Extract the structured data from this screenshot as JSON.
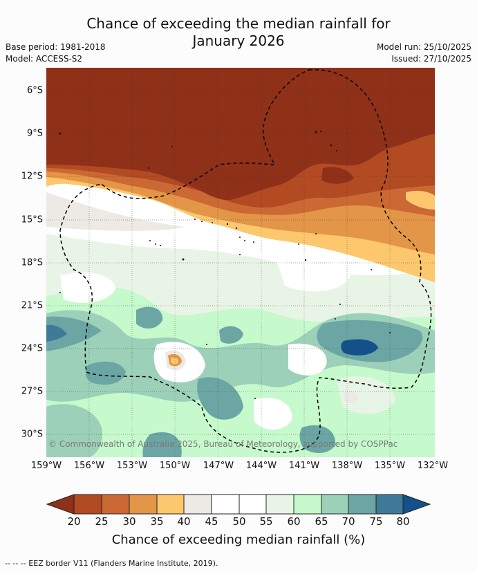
{
  "header": {
    "title_line1": "Chance of exceeding the median rainfall for",
    "title_line2": "January 2026",
    "base_period": "Base period: 1981-2018",
    "model": "Model: ACCESS-S2",
    "model_run": "Model run: 25/10/2025",
    "issued": "Issued: 27/10/2025"
  },
  "map": {
    "lat_labels": [
      "6°S",
      "9°S",
      "12°S",
      "15°S",
      "18°S",
      "21°S",
      "24°S",
      "27°S",
      "30°S"
    ],
    "lat_values": [
      -6,
      -9,
      -12,
      -15,
      -18,
      -21,
      -24,
      -27,
      -30
    ],
    "lon_labels": [
      "159°W",
      "156°W",
      "153°W",
      "150°W",
      "147°W",
      "144°W",
      "141°W",
      "138°W",
      "135°W",
      "132°W"
    ],
    "lon_values": [
      -159,
      -156,
      -153,
      -150,
      -147,
      -144,
      -141,
      -138,
      -135,
      -132
    ],
    "credit": "© Commonwealth of Australia 2025, Bureau of Meteorology, supported by COSPPac"
  },
  "colorbar": {
    "ticks": [
      "20",
      "25",
      "30",
      "35",
      "40",
      "45",
      "50",
      "55",
      "60",
      "65",
      "70",
      "75",
      "80"
    ],
    "colors": [
      "#8f3019",
      "#b24a22",
      "#cb6833",
      "#e39548",
      "#fdc86d",
      "#ede9e4",
      "#ffffff",
      "#ffffff",
      "#e8f5e6",
      "#c6f9cb",
      "#9cd0b9",
      "#6ba6a4",
      "#3f7a98",
      "#145089"
    ],
    "title": "Chance of exceeding median rainfall (%)"
  },
  "footnote": "--  --  -- EEZ border V11 (Flanders Marine Institute, 2019)."
}
